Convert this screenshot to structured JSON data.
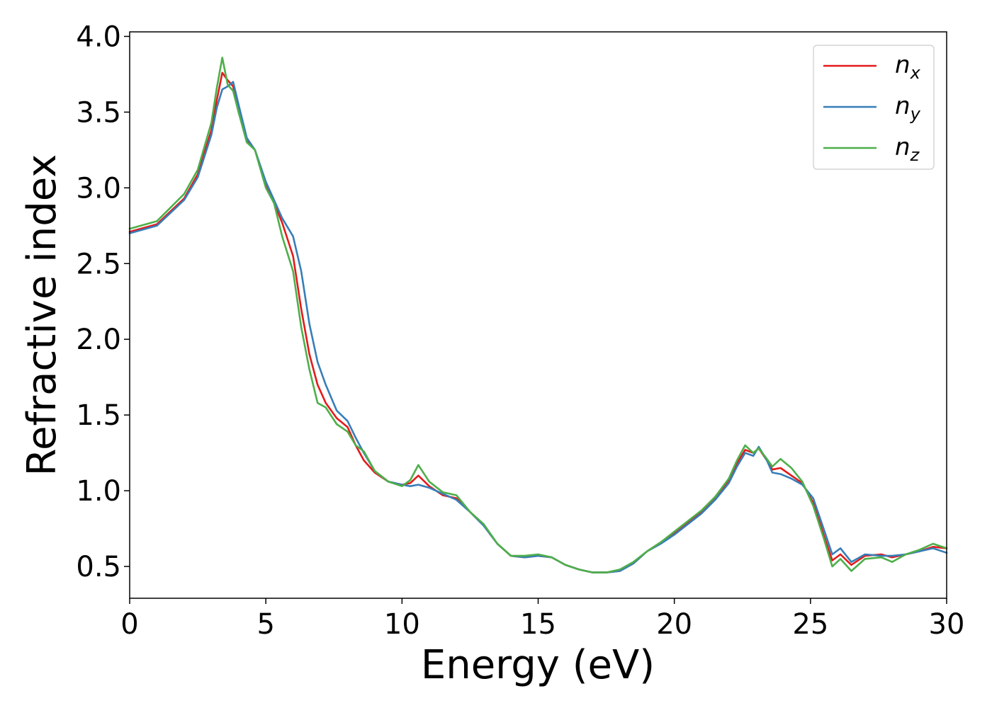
{
  "chart_data": {
    "type": "line",
    "xlabel": "Energy (eV)",
    "ylabel": "Refractive index",
    "xlim": [
      0,
      30
    ],
    "ylim": [
      0.29,
      4.03
    ],
    "xticks": [
      0,
      5,
      10,
      15,
      20,
      25,
      30
    ],
    "yticks": [
      0.5,
      1.0,
      1.5,
      2.0,
      2.5,
      3.0,
      3.5,
      4.0
    ],
    "grid": false,
    "legend_position": "top-right",
    "series": [
      {
        "name": "n",
        "subscript": "x",
        "color": "#e41a1c",
        "points": [
          [
            0,
            2.71
          ],
          [
            1,
            2.76
          ],
          [
            2,
            2.93
          ],
          [
            2.5,
            3.09
          ],
          [
            3,
            3.38
          ],
          [
            3.2,
            3.58
          ],
          [
            3.4,
            3.76
          ],
          [
            3.6,
            3.71
          ],
          [
            3.8,
            3.67
          ],
          [
            4,
            3.5
          ],
          [
            4.3,
            3.32
          ],
          [
            4.6,
            3.25
          ],
          [
            5,
            3.03
          ],
          [
            5.3,
            2.9
          ],
          [
            5.6,
            2.77
          ],
          [
            6,
            2.55
          ],
          [
            6.3,
            2.2
          ],
          [
            6.6,
            1.9
          ],
          [
            6.9,
            1.7
          ],
          [
            7.2,
            1.58
          ],
          [
            7.6,
            1.48
          ],
          [
            8,
            1.42
          ],
          [
            8.3,
            1.3
          ],
          [
            8.6,
            1.2
          ],
          [
            9,
            1.12
          ],
          [
            9.5,
            1.06
          ],
          [
            10,
            1.04
          ],
          [
            10.3,
            1.05
          ],
          [
            10.6,
            1.1
          ],
          [
            11,
            1.03
          ],
          [
            11.5,
            0.97
          ],
          [
            12,
            0.95
          ],
          [
            12.5,
            0.86
          ],
          [
            13,
            0.77
          ],
          [
            13.5,
            0.65
          ],
          [
            14,
            0.57
          ],
          [
            14.5,
            0.56
          ],
          [
            15,
            0.57
          ],
          [
            15.5,
            0.56
          ],
          [
            16,
            0.51
          ],
          [
            16.5,
            0.48
          ],
          [
            17,
            0.46
          ],
          [
            17.5,
            0.46
          ],
          [
            18,
            0.47
          ],
          [
            18.5,
            0.52
          ],
          [
            19,
            0.6
          ],
          [
            19.5,
            0.66
          ],
          [
            20,
            0.72
          ],
          [
            20.5,
            0.79
          ],
          [
            21,
            0.86
          ],
          [
            21.5,
            0.95
          ],
          [
            22,
            1.07
          ],
          [
            22.3,
            1.18
          ],
          [
            22.6,
            1.27
          ],
          [
            22.9,
            1.25
          ],
          [
            23.1,
            1.28
          ],
          [
            23.4,
            1.2
          ],
          [
            23.6,
            1.14
          ],
          [
            23.9,
            1.15
          ],
          [
            24.3,
            1.1
          ],
          [
            24.7,
            1.05
          ],
          [
            25.1,
            0.92
          ],
          [
            25.5,
            0.7
          ],
          [
            25.8,
            0.54
          ],
          [
            26.1,
            0.58
          ],
          [
            26.5,
            0.51
          ],
          [
            27,
            0.57
          ],
          [
            27.6,
            0.58
          ],
          [
            28,
            0.56
          ],
          [
            28.5,
            0.58
          ],
          [
            29,
            0.6
          ],
          [
            29.5,
            0.63
          ],
          [
            30,
            0.62
          ]
        ]
      },
      {
        "name": "n",
        "subscript": "y",
        "color": "#377eb8",
        "points": [
          [
            0,
            2.7
          ],
          [
            1,
            2.75
          ],
          [
            2,
            2.92
          ],
          [
            2.5,
            3.07
          ],
          [
            3,
            3.35
          ],
          [
            3.2,
            3.53
          ],
          [
            3.4,
            3.65
          ],
          [
            3.6,
            3.67
          ],
          [
            3.8,
            3.7
          ],
          [
            4,
            3.55
          ],
          [
            4.3,
            3.33
          ],
          [
            4.6,
            3.25
          ],
          [
            5,
            3.04
          ],
          [
            5.3,
            2.92
          ],
          [
            5.6,
            2.8
          ],
          [
            6,
            2.68
          ],
          [
            6.3,
            2.45
          ],
          [
            6.6,
            2.1
          ],
          [
            6.9,
            1.85
          ],
          [
            7.2,
            1.7
          ],
          [
            7.6,
            1.53
          ],
          [
            8,
            1.46
          ],
          [
            8.3,
            1.35
          ],
          [
            8.6,
            1.25
          ],
          [
            9,
            1.13
          ],
          [
            9.5,
            1.06
          ],
          [
            10,
            1.04
          ],
          [
            10.3,
            1.03
          ],
          [
            10.6,
            1.04
          ],
          [
            11,
            1.02
          ],
          [
            11.5,
            0.98
          ],
          [
            12,
            0.94
          ],
          [
            12.5,
            0.86
          ],
          [
            13,
            0.77
          ],
          [
            13.5,
            0.65
          ],
          [
            14,
            0.57
          ],
          [
            14.5,
            0.56
          ],
          [
            15,
            0.57
          ],
          [
            15.5,
            0.56
          ],
          [
            16,
            0.51
          ],
          [
            16.5,
            0.48
          ],
          [
            17,
            0.46
          ],
          [
            17.5,
            0.46
          ],
          [
            18,
            0.47
          ],
          [
            18.5,
            0.52
          ],
          [
            19,
            0.6
          ],
          [
            19.5,
            0.65
          ],
          [
            20,
            0.71
          ],
          [
            20.5,
            0.78
          ],
          [
            21,
            0.85
          ],
          [
            21.5,
            0.94
          ],
          [
            22,
            1.05
          ],
          [
            22.3,
            1.16
          ],
          [
            22.6,
            1.25
          ],
          [
            22.9,
            1.23
          ],
          [
            23.1,
            1.29
          ],
          [
            23.4,
            1.2
          ],
          [
            23.6,
            1.12
          ],
          [
            23.9,
            1.11
          ],
          [
            24.3,
            1.08
          ],
          [
            24.7,
            1.04
          ],
          [
            25.1,
            0.95
          ],
          [
            25.5,
            0.74
          ],
          [
            25.8,
            0.58
          ],
          [
            26.1,
            0.62
          ],
          [
            26.5,
            0.53
          ],
          [
            27,
            0.58
          ],
          [
            27.6,
            0.57
          ],
          [
            28,
            0.57
          ],
          [
            28.5,
            0.58
          ],
          [
            29,
            0.6
          ],
          [
            29.5,
            0.62
          ],
          [
            30,
            0.59
          ]
        ]
      },
      {
        "name": "n",
        "subscript": "z",
        "color": "#4daf4a",
        "points": [
          [
            0,
            2.73
          ],
          [
            1,
            2.78
          ],
          [
            2,
            2.96
          ],
          [
            2.5,
            3.12
          ],
          [
            3,
            3.43
          ],
          [
            3.2,
            3.66
          ],
          [
            3.4,
            3.86
          ],
          [
            3.6,
            3.68
          ],
          [
            3.8,
            3.64
          ],
          [
            4,
            3.5
          ],
          [
            4.3,
            3.3
          ],
          [
            4.6,
            3.25
          ],
          [
            5,
            3.0
          ],
          [
            5.3,
            2.9
          ],
          [
            5.6,
            2.68
          ],
          [
            6,
            2.45
          ],
          [
            6.3,
            2.08
          ],
          [
            6.6,
            1.8
          ],
          [
            6.9,
            1.58
          ],
          [
            7.2,
            1.55
          ],
          [
            7.6,
            1.44
          ],
          [
            8,
            1.39
          ],
          [
            8.3,
            1.3
          ],
          [
            8.6,
            1.26
          ],
          [
            9,
            1.13
          ],
          [
            9.5,
            1.06
          ],
          [
            10,
            1.03
          ],
          [
            10.3,
            1.07
          ],
          [
            10.6,
            1.17
          ],
          [
            11,
            1.06
          ],
          [
            11.5,
            0.99
          ],
          [
            12,
            0.97
          ],
          [
            12.5,
            0.86
          ],
          [
            13,
            0.78
          ],
          [
            13.5,
            0.65
          ],
          [
            14,
            0.57
          ],
          [
            14.5,
            0.57
          ],
          [
            15,
            0.58
          ],
          [
            15.5,
            0.56
          ],
          [
            16,
            0.51
          ],
          [
            16.5,
            0.48
          ],
          [
            17,
            0.46
          ],
          [
            17.5,
            0.46
          ],
          [
            18,
            0.48
          ],
          [
            18.5,
            0.53
          ],
          [
            19,
            0.6
          ],
          [
            19.5,
            0.66
          ],
          [
            20,
            0.73
          ],
          [
            20.5,
            0.8
          ],
          [
            21,
            0.87
          ],
          [
            21.5,
            0.96
          ],
          [
            22,
            1.08
          ],
          [
            22.3,
            1.2
          ],
          [
            22.6,
            1.3
          ],
          [
            22.9,
            1.25
          ],
          [
            23.1,
            1.28
          ],
          [
            23.4,
            1.21
          ],
          [
            23.6,
            1.16
          ],
          [
            23.9,
            1.21
          ],
          [
            24.3,
            1.15
          ],
          [
            24.7,
            1.06
          ],
          [
            25.1,
            0.9
          ],
          [
            25.5,
            0.68
          ],
          [
            25.8,
            0.5
          ],
          [
            26.1,
            0.55
          ],
          [
            26.5,
            0.47
          ],
          [
            27,
            0.55
          ],
          [
            27.6,
            0.56
          ],
          [
            28,
            0.53
          ],
          [
            28.5,
            0.58
          ],
          [
            29,
            0.61
          ],
          [
            29.5,
            0.65
          ],
          [
            30,
            0.62
          ]
        ]
      }
    ]
  }
}
